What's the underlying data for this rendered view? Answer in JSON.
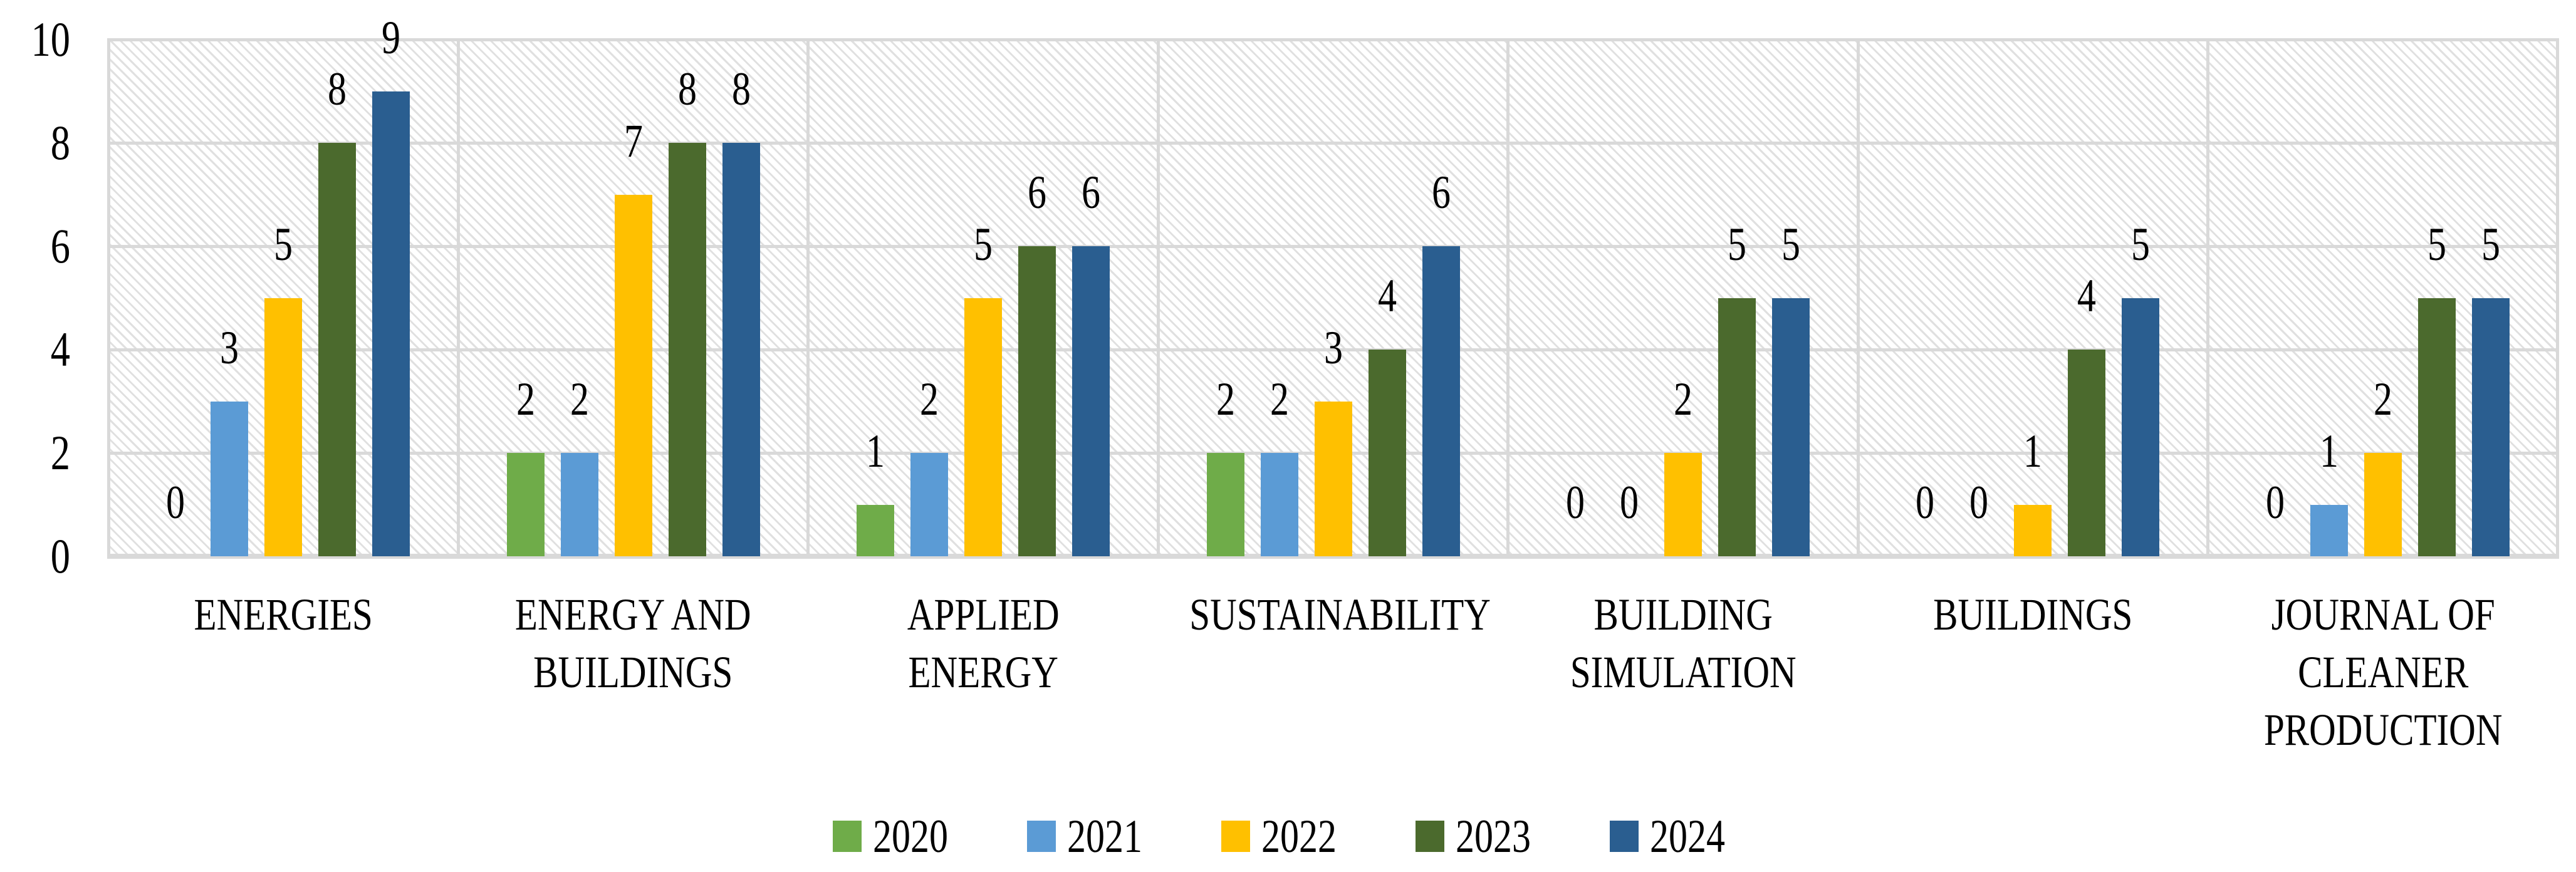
{
  "chart_data": {
    "type": "bar",
    "title": "",
    "xlabel": "",
    "ylabel": "",
    "categories": [
      "ENERGIES",
      "ENERGY AND BUILDINGS",
      "APPLIED ENERGY",
      "SUSTAINABILITY",
      "BUILDING SIMULATION",
      "BUILDINGS",
      "JOURNAL OF CLEANER PRODUCTION"
    ],
    "category_label_lines": [
      [
        "ENERGIES"
      ],
      [
        "ENERGY AND",
        "BUILDINGS"
      ],
      [
        "APPLIED",
        "ENERGY"
      ],
      [
        "SUSTAINABILITY"
      ],
      [
        "BUILDING",
        "SIMULATION"
      ],
      [
        "BUILDINGS"
      ],
      [
        "JOURNAL OF",
        "CLEANER",
        "PRODUCTION"
      ]
    ],
    "series": [
      {
        "name": "2020",
        "color": "#6FAC49",
        "values": [
          0,
          2,
          1,
          2,
          0,
          0,
          0
        ]
      },
      {
        "name": "2021",
        "color": "#5B9BD5",
        "values": [
          3,
          2,
          2,
          2,
          0,
          0,
          1
        ]
      },
      {
        "name": "2022",
        "color": "#FFC000",
        "values": [
          5,
          7,
          5,
          3,
          2,
          1,
          2
        ]
      },
      {
        "name": "2023",
        "color": "#4B6A2D",
        "values": [
          8,
          8,
          6,
          4,
          5,
          4,
          5
        ]
      },
      {
        "name": "2024",
        "color": "#2A5E90",
        "values": [
          9,
          8,
          6,
          6,
          5,
          5,
          5
        ]
      }
    ],
    "ylim": [
      0,
      10
    ],
    "yticks": [
      0,
      2,
      4,
      6,
      8,
      10
    ],
    "grid": {
      "horizontal": true,
      "vertical_category_separators": true,
      "color": "#D9D9D9"
    },
    "plot_background_pattern": "light-downward-diagonal-hatch",
    "data_labels": true,
    "legend_position": "bottom"
  }
}
